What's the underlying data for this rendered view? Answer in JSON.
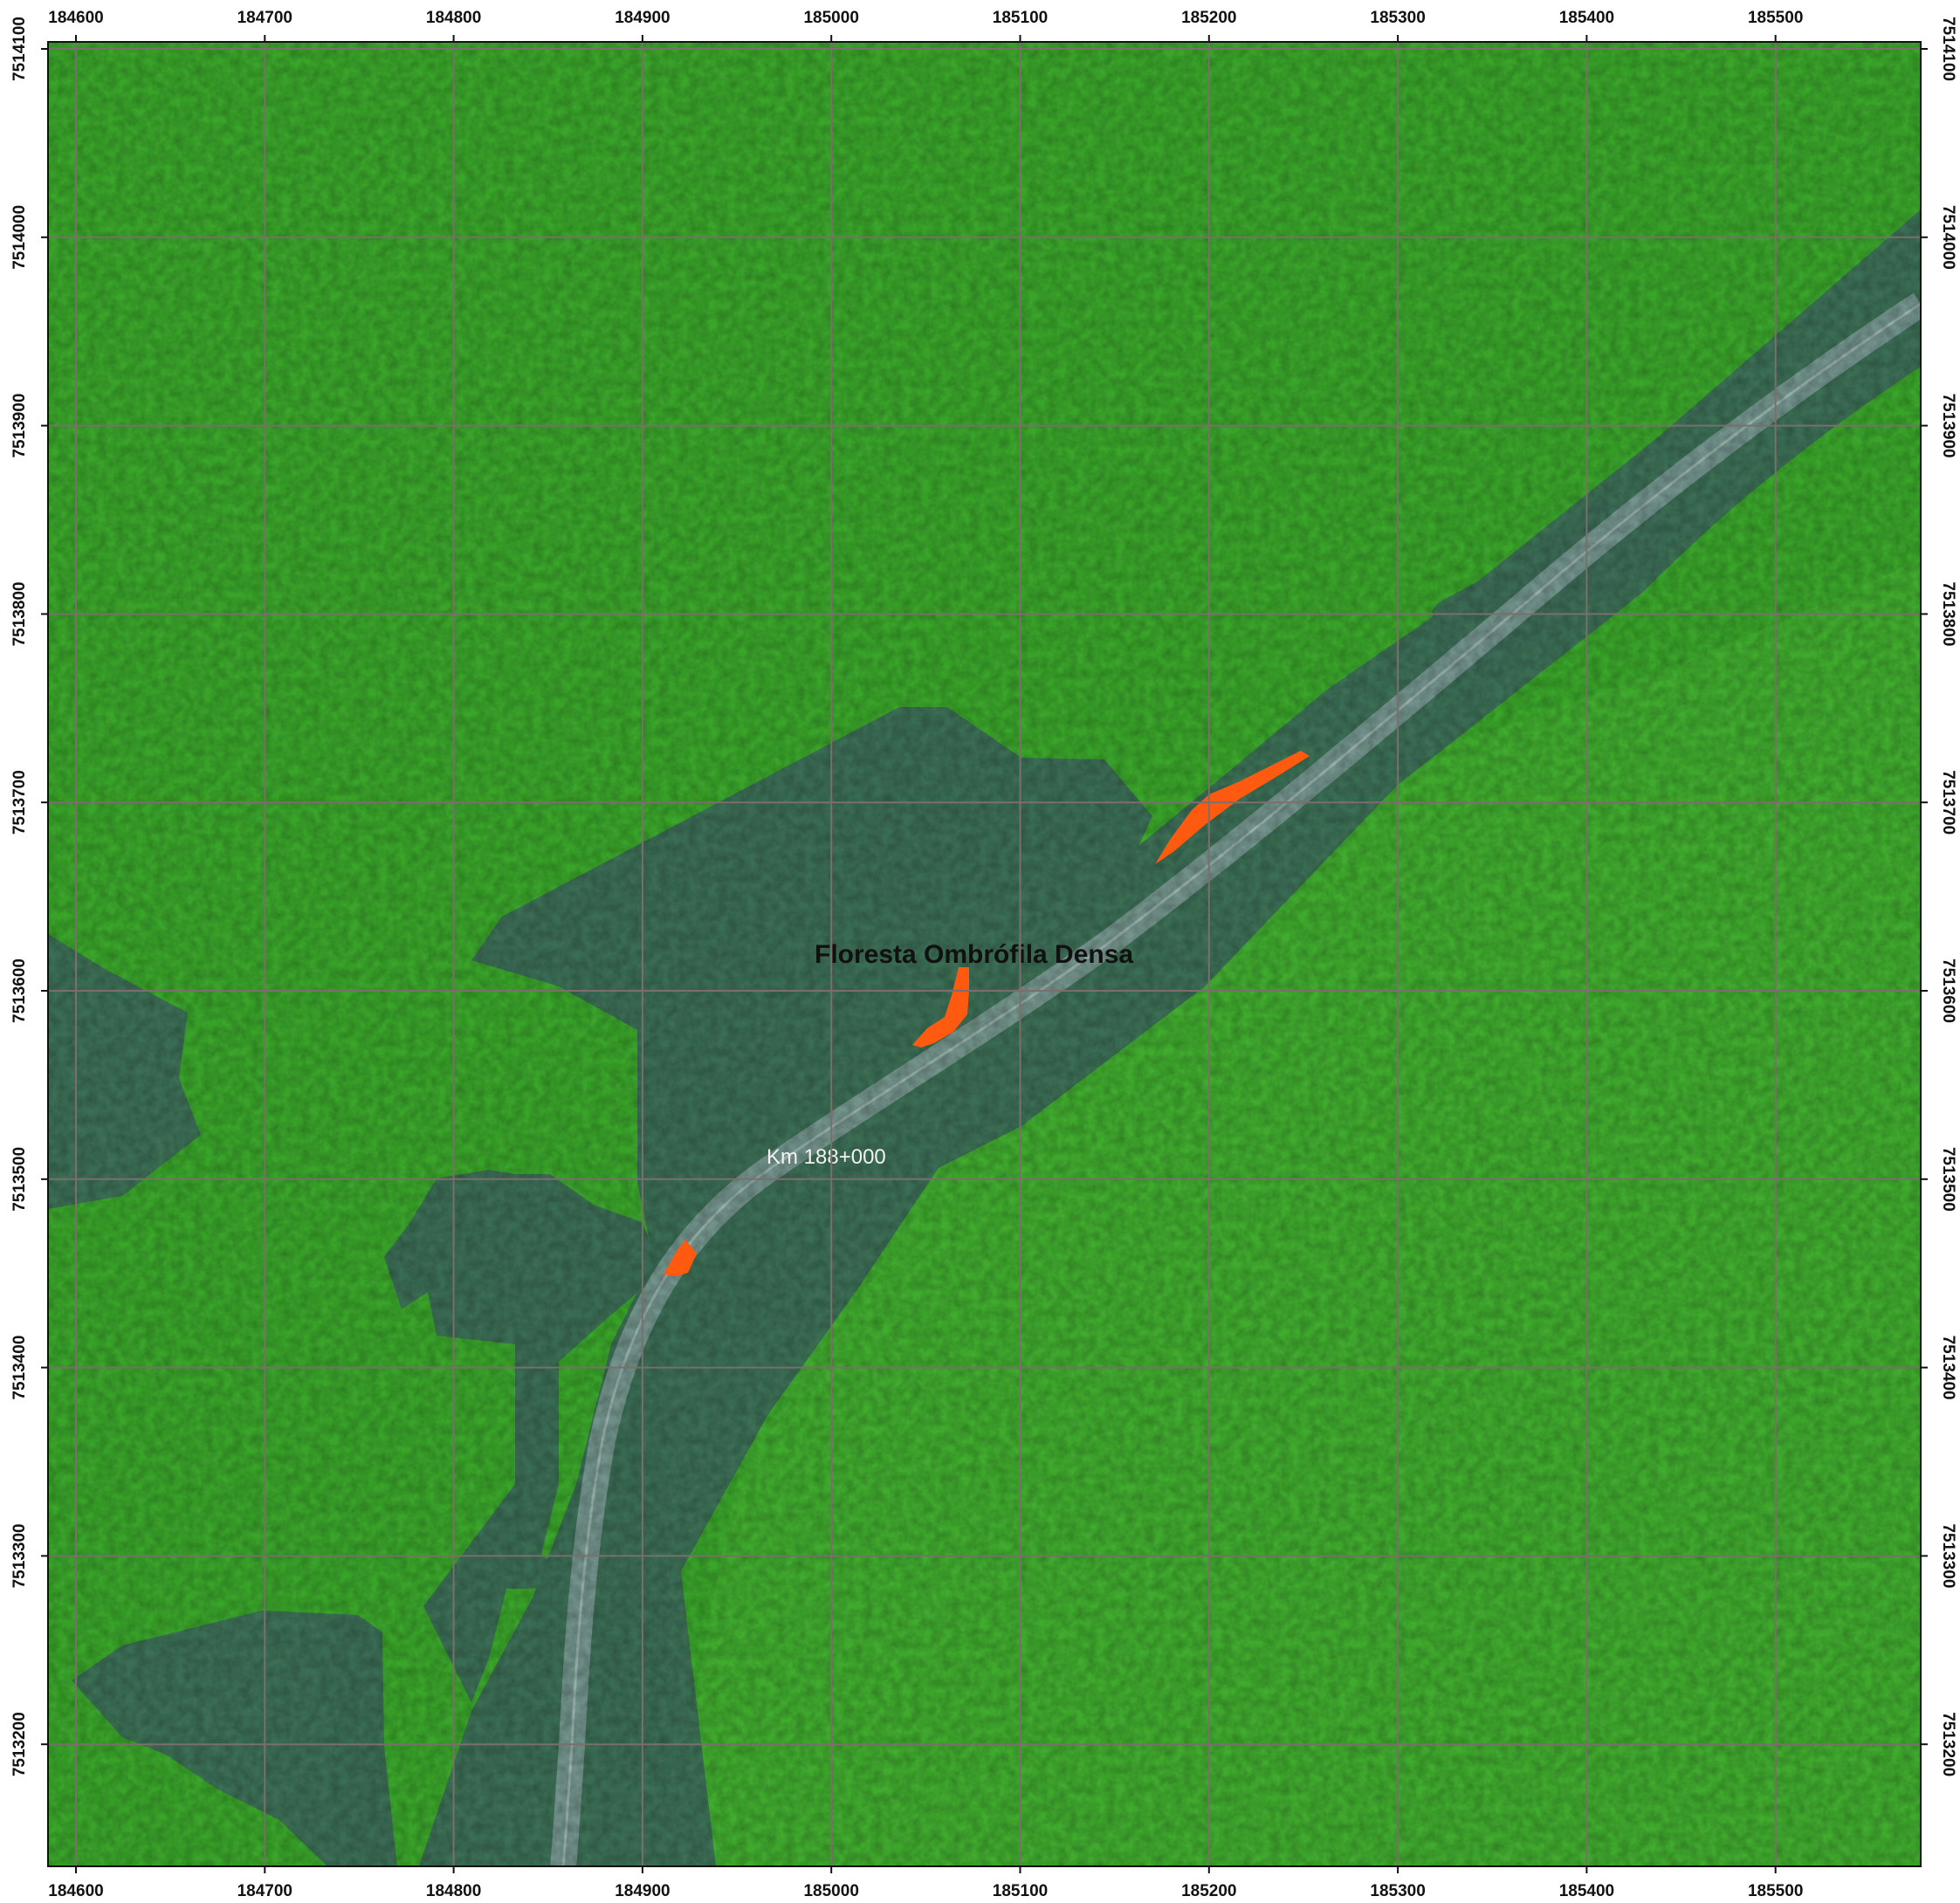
{
  "map": {
    "x_ticks": [
      "184600",
      "184700",
      "184800",
      "184900",
      "185000",
      "185100",
      "185200",
      "185300",
      "185400",
      "185500"
    ],
    "y_ticks": [
      "7514100",
      "7514000",
      "7513900",
      "7513800",
      "7513700",
      "7513600",
      "7513500",
      "7513400",
      "7513300",
      "7513200"
    ],
    "labels": {
      "vegetation_class": "Floresta Ombrófila Densa",
      "road_marker": "Km 188+000"
    },
    "colors": {
      "forest": "#3aa52a",
      "forest_dark": "#2f8f23",
      "cleared_area": "#3c6b58",
      "road": "#7d9a95",
      "highlight": "#ff5a10",
      "grid": "#7a6f6a",
      "frame": "#111111"
    },
    "icons": {
      "texture": "forest-canopy-texture"
    }
  }
}
